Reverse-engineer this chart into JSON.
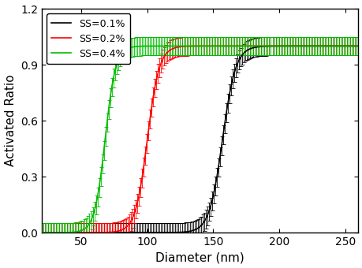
{
  "title": "",
  "xlabel": "Diameter (nm)",
  "ylabel": "Activated Ratio",
  "xlim": [
    20,
    260
  ],
  "ylim": [
    0.0,
    1.2
  ],
  "yticks": [
    0.0,
    0.3,
    0.6,
    0.9,
    1.2
  ],
  "xticks": [
    50,
    100,
    150,
    200,
    250
  ],
  "series": [
    {
      "label": "SS=0.1%",
      "color": "#000000",
      "midpoint": 157,
      "k": 0.2
    },
    {
      "label": "SS=0.2%",
      "color": "#ff0000",
      "midpoint": 100,
      "k": 0.22
    },
    {
      "label": "SS=0.4%",
      "color": "#00bb00",
      "midpoint": 68,
      "k": 0.25
    }
  ],
  "error_uniform": 0.05,
  "n_points": 200,
  "figsize": [
    4.6,
    3.4
  ],
  "dpi": 100,
  "background_color": "#ffffff",
  "legend_fontsize": 9,
  "axis_fontsize": 11,
  "tick_fontsize": 10
}
